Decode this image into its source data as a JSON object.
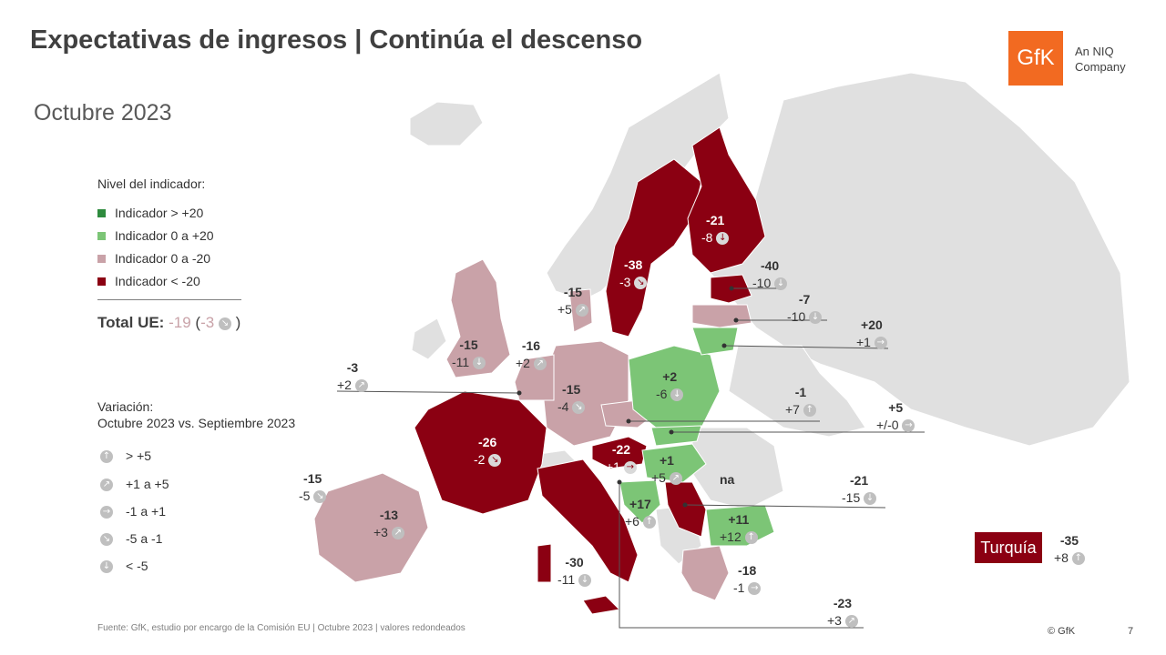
{
  "title": "Expectativas de ingresos | Continúa el descenso",
  "subtitle": "Octubre 2023",
  "logo": {
    "text": "GfK",
    "tagline_1": "An NIQ",
    "tagline_2": "Company"
  },
  "legend": {
    "title": "Nivel del indicador:",
    "items": [
      {
        "label": "Indicador > +20",
        "color": "#2e8b3e"
      },
      {
        "label": "Indicador 0 a +20",
        "color": "#7cc576"
      },
      {
        "label": "Indicador 0 a -20",
        "color": "#c9a2a8"
      },
      {
        "label": "Indicador < -20",
        "color": "#8b0012"
      }
    ]
  },
  "total": {
    "label": "Total UE:",
    "level": "-19",
    "open": "(",
    "change": "-3",
    "close": ")"
  },
  "variation_legend": {
    "title_1": "Variación:",
    "title_2": "Octubre 2023 vs. Septiembre 2023",
    "items": [
      {
        "label": "> +5",
        "icon": "arrow-up-icon"
      },
      {
        "label": "+1 a +5",
        "icon": "arrow-up-right-icon"
      },
      {
        "label": "-1 a +1",
        "icon": "arrow-right-icon"
      },
      {
        "label": "-5 a -1",
        "icon": "arrow-down-right-icon"
      },
      {
        "label": "< -5",
        "icon": "arrow-down-icon"
      }
    ]
  },
  "chart_data": {
    "type": "choropleth-map",
    "title": "Expectativas de ingresos | Continúa el descenso",
    "subtitle": "Octubre 2023",
    "countries": [
      {
        "name": "Finlandia",
        "level": "-21",
        "change": "-8"
      },
      {
        "name": "Suecia",
        "level": "-38",
        "change": "-3"
      },
      {
        "name": "Dinamarca",
        "level": "-15",
        "change": "+5"
      },
      {
        "name": "Estonia",
        "level": "-40",
        "change": "-10"
      },
      {
        "name": "Letonia",
        "level": "-7",
        "change": "-10"
      },
      {
        "name": "Lituania",
        "level": "+20",
        "change": "+1"
      },
      {
        "name": "Reino Unido",
        "level": "-15",
        "change": "-11"
      },
      {
        "name": "Países Bajos",
        "level": "-16",
        "change": "+2"
      },
      {
        "name": "Bélgica",
        "level": "-3",
        "change": "+2"
      },
      {
        "name": "Alemania",
        "level": "-15",
        "change": "-4"
      },
      {
        "name": "Polonia",
        "level": "+2",
        "change": "-6"
      },
      {
        "name": "República Checa",
        "level": "-1",
        "change": "+7"
      },
      {
        "name": "Eslovaquia",
        "level": "+5",
        "change": "+/-0"
      },
      {
        "name": "Francia",
        "level": "-26",
        "change": "-2"
      },
      {
        "name": "Austria",
        "level": "-22",
        "change": "+1"
      },
      {
        "name": "Hungría",
        "level": "+1",
        "change": "+5"
      },
      {
        "name": "Rumanía",
        "level": "na",
        "change": ""
      },
      {
        "name": "Portugal",
        "level": "-15",
        "change": "-5"
      },
      {
        "name": "España",
        "level": "-13",
        "change": "+3"
      },
      {
        "name": "Croacia",
        "level": "+17",
        "change": "+6"
      },
      {
        "name": "Serbia",
        "level": "-21",
        "change": "-15"
      },
      {
        "name": "Bulgaria",
        "level": "+11",
        "change": "+12"
      },
      {
        "name": "Italia",
        "level": "-30",
        "change": "-11"
      },
      {
        "name": "Grecia",
        "level": "-18",
        "change": "-1"
      },
      {
        "name": "Chipre",
        "level": "-23",
        "change": "+3"
      },
      {
        "name": "Turquía",
        "level": "-35",
        "change": "+8"
      }
    ]
  },
  "turquia_label": "Turquía",
  "footer": "Fuente: GfK, estudio por encargo de la Comisión EU  | Octubre 2023 | valores redondeados",
  "copyright": "© GfK",
  "page_number": "7"
}
